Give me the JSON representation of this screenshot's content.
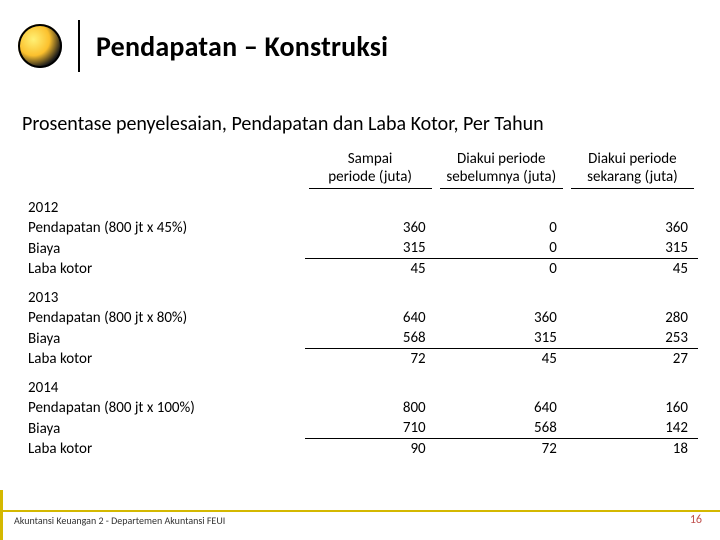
{
  "title": "Pendapatan – Konstruksi",
  "subtitle": "Prosentase penyelesaian, Pendapatan dan Laba Kotor, Per Tahun",
  "columns": [
    {
      "line1": "Sampai",
      "line2": "periode (juta)"
    },
    {
      "line1": "Diakui periode",
      "line2": "sebelumnya (juta)"
    },
    {
      "line1": "Diakui periode",
      "line2": "sekarang (juta)"
    }
  ],
  "groups": [
    {
      "year": "2012",
      "rows": [
        {
          "label": "Pendapatan (800 jt x 45%)",
          "c1": "360",
          "c2": "0",
          "c3": "360"
        },
        {
          "label": "Biaya",
          "c1": "315",
          "c2": "0",
          "c3": "315",
          "ul": true
        },
        {
          "label": "Laba kotor",
          "c1": "45",
          "c2": "0",
          "c3": "45",
          "dbl": true
        }
      ]
    },
    {
      "year": "2013",
      "rows": [
        {
          "label": "Pendapatan (800 jt x 80%)",
          "c1": "640",
          "c2": "360",
          "c3": "280"
        },
        {
          "label": "Biaya",
          "c1": "568",
          "c2": "315",
          "c3": "253",
          "ul": true
        },
        {
          "label": "Laba kotor",
          "c1": "72",
          "c2": "45",
          "c3": "27",
          "dbl": true
        }
      ]
    },
    {
      "year": "2014",
      "rows": [
        {
          "label": "Pendapatan (800 jt x 100%)",
          "c1": "800",
          "c2": "640",
          "c3": "160"
        },
        {
          "label": "Biaya",
          "c1": "710",
          "c2": "568",
          "c3": "142",
          "ul": true
        },
        {
          "label": "Laba kotor",
          "c1": "90",
          "c2": "72",
          "c3": "18",
          "dbl": true
        }
      ]
    }
  ],
  "footer": "Akuntansi Keuangan 2 - Departemen Akuntansi FEUI",
  "page": "16",
  "colors": {
    "accent": "#d4b800",
    "pagenum": "#c0504d"
  }
}
